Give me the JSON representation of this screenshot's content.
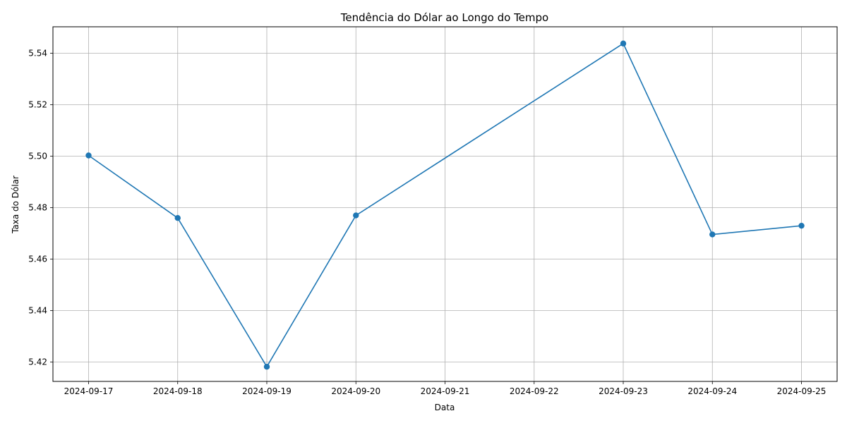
{
  "chart_data": {
    "type": "line",
    "title": "Tendência do Dólar ao Longo do Tempo",
    "xlabel": "Data",
    "ylabel": "Taxa do Dólar",
    "x_ticks": [
      "2024-09-17",
      "2024-09-18",
      "2024-09-19",
      "2024-09-20",
      "2024-09-21",
      "2024-09-22",
      "2024-09-23",
      "2024-09-24",
      "2024-09-25"
    ],
    "y_ticks": [
      "5.42",
      "5.44",
      "5.46",
      "5.48",
      "5.50",
      "5.52",
      "5.54"
    ],
    "ylim": [
      5.4125,
      5.5503
    ],
    "xlim": [
      "2024-09-16",
      "2024-09-25"
    ],
    "grid": true,
    "series": [
      {
        "color": "#1f77b4",
        "marker": "circle",
        "points": [
          {
            "x": "2024-09-17",
            "y": 5.5003
          },
          {
            "x": "2024-09-18",
            "y": 5.476
          },
          {
            "x": "2024-09-19",
            "y": 5.4182
          },
          {
            "x": "2024-09-20",
            "y": 5.477
          },
          {
            "x": "2024-09-23",
            "y": 5.5438
          },
          {
            "x": "2024-09-24",
            "y": 5.4696
          },
          {
            "x": "2024-09-25",
            "y": 5.473
          }
        ]
      }
    ]
  }
}
